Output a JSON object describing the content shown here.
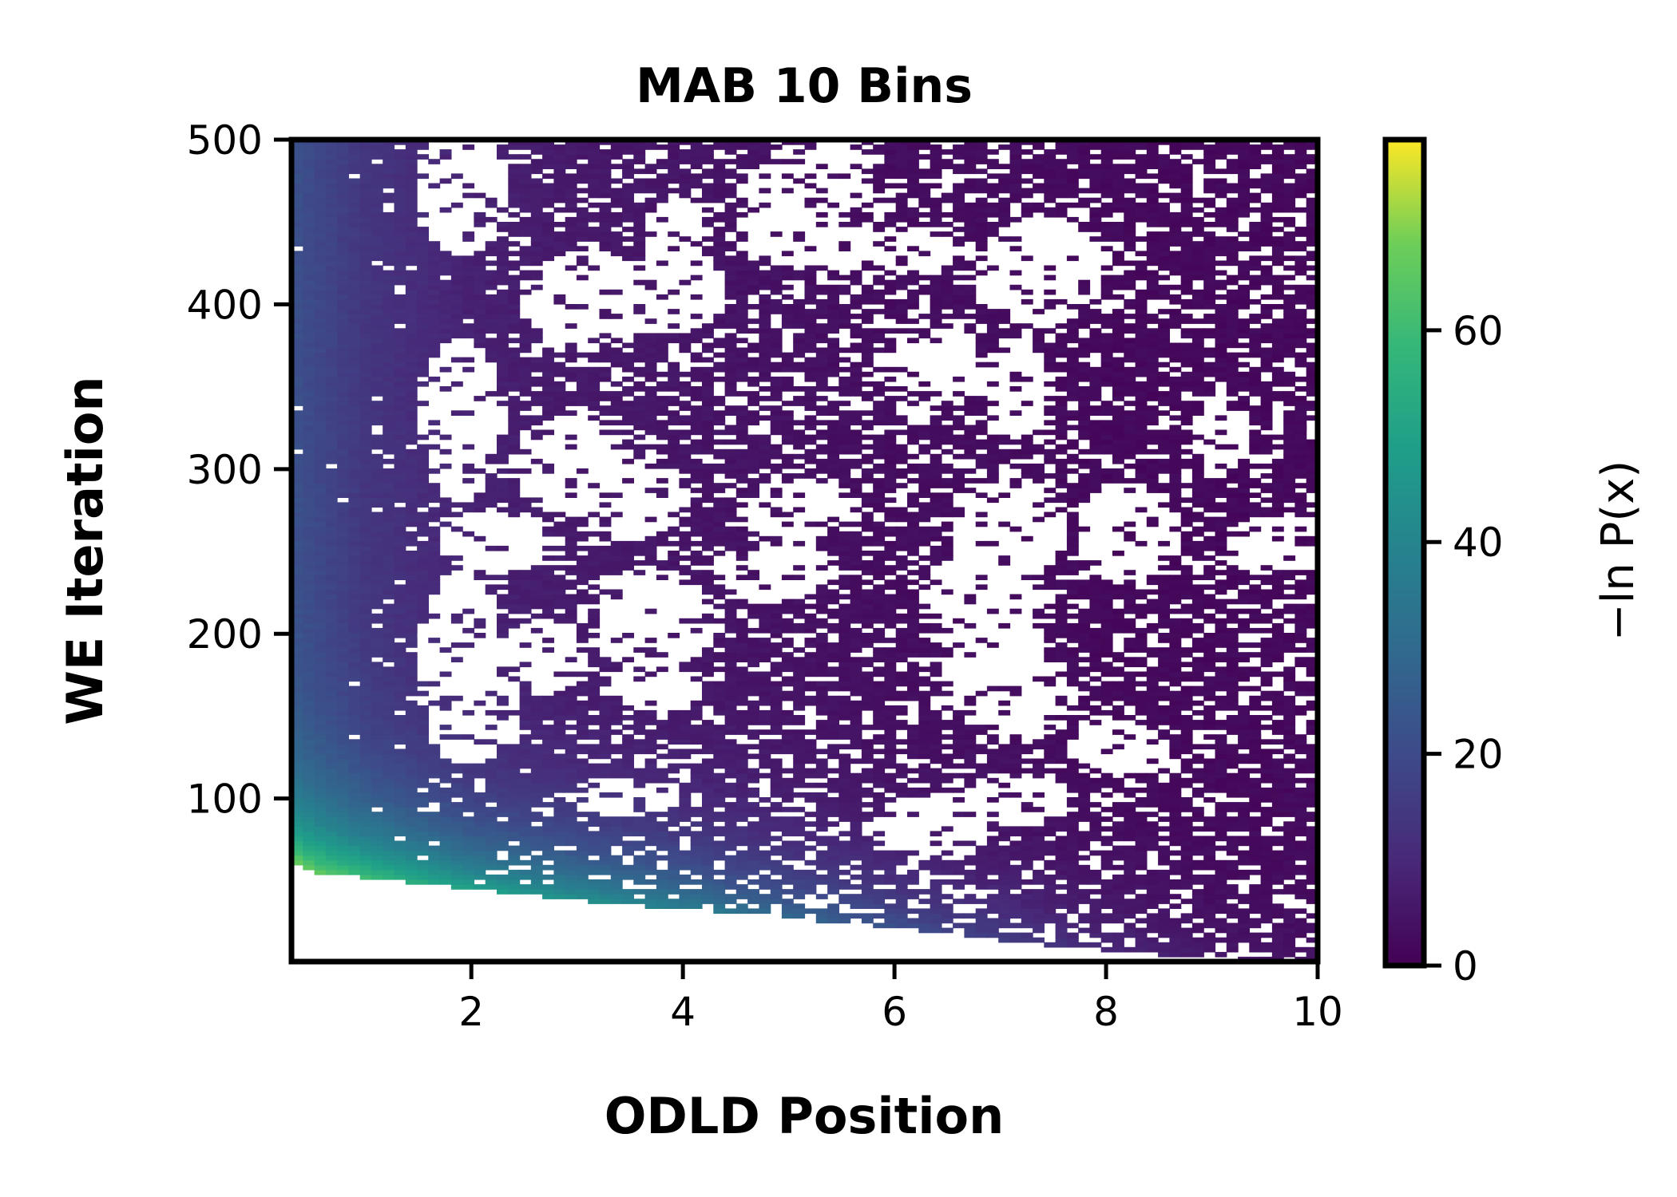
{
  "chart_data": {
    "type": "heatmap",
    "title": "MAB 10 Bins",
    "xlabel": "ODLD Position",
    "ylabel": "WE Iteration",
    "colorbar_label": "−ln P(x)",
    "xlim": [
      0.3,
      10
    ],
    "ylim": [
      1,
      500
    ],
    "xticks": [
      2,
      4,
      6,
      8,
      10
    ],
    "yticks": [
      100,
      200,
      300,
      400,
      500
    ],
    "colorbar_range": [
      0,
      78
    ],
    "colorbar_ticks": [
      0,
      20,
      40,
      60
    ],
    "colormap": "viridis",
    "grid": false,
    "frontier": {
      "description": "lower boundary of sampled region: iteration at which each position is first reached",
      "x": [
        0.3,
        0.5,
        1,
        2,
        3,
        4,
        5,
        6,
        7,
        8,
        9,
        10
      ],
      "y": [
        60,
        55,
        52,
        45,
        38,
        33,
        27,
        22,
        14,
        8,
        3,
        1
      ]
    },
    "value_profile": {
      "description": "approximate -ln P(x) at the frontier (youngest samples) and in the equilibrated region",
      "x": [
        0.3,
        1,
        2,
        3,
        4,
        5,
        6,
        7,
        8,
        9,
        10
      ],
      "frontier_value": [
        70,
        60,
        50,
        45,
        38,
        30,
        22,
        16,
        10,
        6,
        4
      ],
      "steady_value": [
        22,
        14,
        8,
        6,
        5,
        4,
        3,
        3,
        2,
        2,
        2
      ]
    }
  },
  "colors": {
    "frame": "#000000",
    "empty_bins": "#ffffff",
    "viridis_low": "#440154",
    "viridis_high": "#fde725"
  }
}
